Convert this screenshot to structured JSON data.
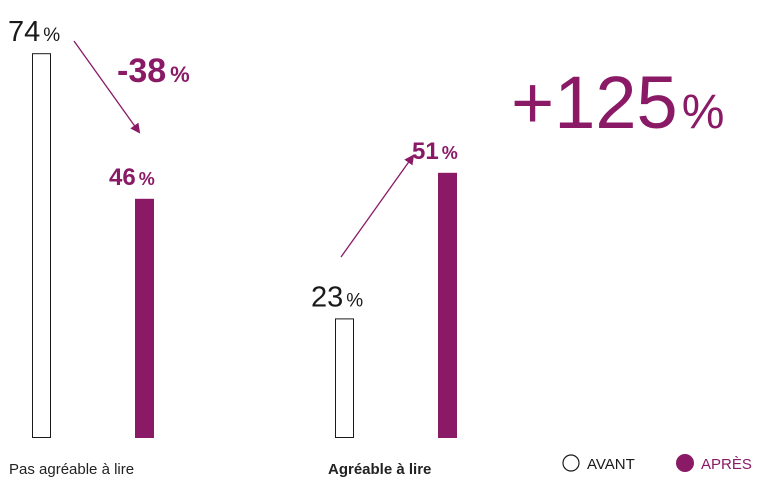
{
  "chart_data": {
    "type": "bar",
    "categories": [
      "Pas agréable à lire",
      "Agréable à lire"
    ],
    "category_bold": [
      false,
      true
    ],
    "series": [
      {
        "name": "AVANT",
        "values": [
          74,
          23
        ],
        "style": "outline",
        "color": "#1a1a1a"
      },
      {
        "name": "APRÈS",
        "values": [
          46,
          51
        ],
        "style": "filled",
        "color": "#8a1a66"
      }
    ],
    "unit": "%",
    "ylim": [
      0,
      80
    ],
    "changes": [
      {
        "num": "-38",
        "unit": "%",
        "category": 0
      },
      {
        "num": "+125",
        "unit": "%",
        "category": 1
      }
    ],
    "legend_position": "bottom-right",
    "colors": {
      "accent": "#8a1a66",
      "outline": "#1a1a1a",
      "text": "#222222"
    }
  }
}
